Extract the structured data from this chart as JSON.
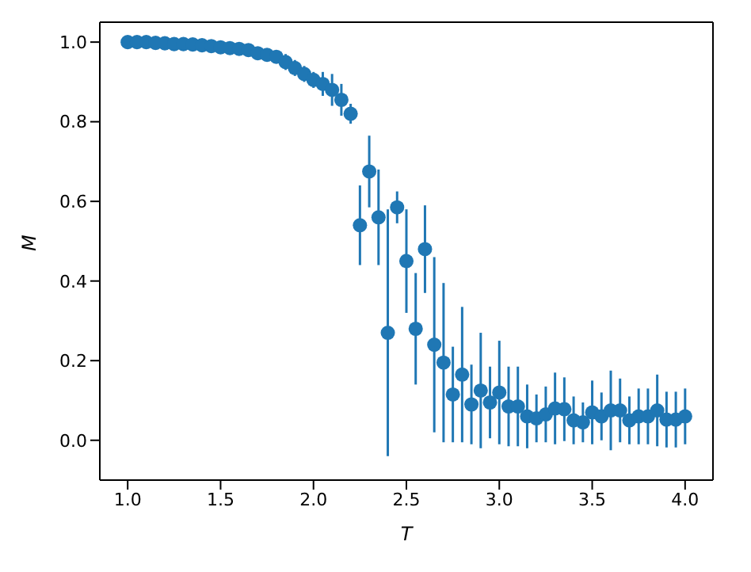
{
  "chart_data": {
    "type": "scatter",
    "xlabel": "T",
    "ylabel": "M",
    "x": [
      1.0,
      1.05,
      1.1,
      1.15,
      1.2,
      1.25,
      1.3,
      1.35,
      1.4,
      1.45,
      1.5,
      1.55,
      1.6,
      1.65,
      1.7,
      1.75,
      1.8,
      1.85,
      1.9,
      1.95,
      2.0,
      2.05,
      2.1,
      2.15,
      2.2,
      2.25,
      2.3,
      2.35,
      2.4,
      2.45,
      2.5,
      2.55,
      2.6,
      2.65,
      2.7,
      2.75,
      2.8,
      2.85,
      2.9,
      2.95,
      3.0,
      3.05,
      3.1,
      3.15,
      3.2,
      3.25,
      3.3,
      3.35,
      3.4,
      3.45,
      3.5,
      3.55,
      3.6,
      3.65,
      3.7,
      3.75,
      3.8,
      3.85,
      3.9,
      3.95,
      4.0
    ],
    "series": [
      {
        "color": "#1f77b4",
        "values": [
          1.0,
          1.0,
          1.0,
          0.998,
          0.997,
          0.995,
          0.995,
          0.994,
          0.992,
          0.99,
          0.987,
          0.985,
          0.983,
          0.98,
          0.972,
          0.968,
          0.963,
          0.95,
          0.935,
          0.92,
          0.905,
          0.895,
          0.88,
          0.855,
          0.82,
          0.54,
          0.675,
          0.56,
          0.27,
          0.585,
          0.45,
          0.28,
          0.48,
          0.24,
          0.195,
          0.115,
          0.165,
          0.09,
          0.125,
          0.095,
          0.12,
          0.085,
          0.085,
          0.06,
          0.055,
          0.065,
          0.08,
          0.078,
          0.05,
          0.045,
          0.07,
          0.06,
          0.075,
          0.075,
          0.05,
          0.06,
          0.06,
          0.075,
          0.052,
          0.052,
          0.06
        ],
        "errors": [
          null,
          null,
          null,
          null,
          null,
          null,
          null,
          null,
          null,
          null,
          null,
          null,
          null,
          null,
          0.008,
          0.01,
          0.01,
          0.02,
          0.02,
          0.02,
          0.02,
          0.03,
          0.04,
          0.04,
          0.025,
          0.1,
          0.09,
          0.12,
          0.31,
          0.04,
          0.13,
          0.14,
          0.11,
          0.22,
          0.2,
          0.12,
          0.17,
          0.1,
          0.145,
          0.09,
          0.13,
          0.1,
          0.1,
          0.08,
          0.06,
          0.07,
          0.09,
          0.08,
          0.06,
          0.05,
          0.08,
          0.06,
          0.1,
          0.08,
          0.06,
          0.07,
          0.07,
          0.09,
          0.07,
          0.07,
          0.07
        ]
      }
    ],
    "xlim": [
      0.85,
      4.15
    ],
    "ylim": [
      -0.1,
      1.05
    ],
    "xticks": [
      {
        "value": 1,
        "label": "1.0"
      },
      {
        "value": 1.5,
        "label": "1.5"
      },
      {
        "value": 2,
        "label": "2.0"
      },
      {
        "value": 2.5,
        "label": "2.5"
      },
      {
        "value": 3,
        "label": "3.0"
      },
      {
        "value": 3.5,
        "label": "3.5"
      },
      {
        "value": 4,
        "label": "4.0"
      }
    ],
    "yticks": [
      {
        "value": 0,
        "label": "0.0"
      },
      {
        "value": 0.2,
        "label": "0.2"
      },
      {
        "value": 0.4,
        "label": "0.4"
      },
      {
        "value": 0.6,
        "label": "0.6"
      },
      {
        "value": 0.8,
        "label": "0.8"
      },
      {
        "value": 1,
        "label": "1.0"
      }
    ],
    "marker": "circle",
    "grid": false,
    "legend": false
  }
}
